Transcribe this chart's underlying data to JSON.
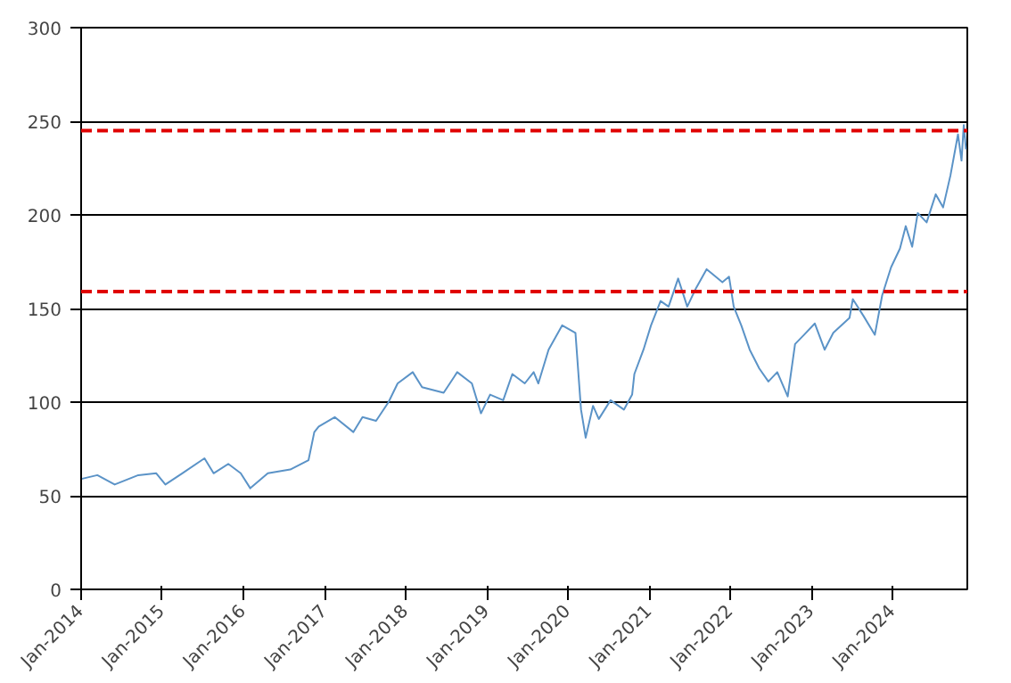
{
  "chart_data": {
    "type": "line",
    "x": [
      "2014-01-02",
      "2014-03-15",
      "2014-06-01",
      "2014-09-15",
      "2014-12-05",
      "2015-01-15",
      "2015-04-01",
      "2015-07-10",
      "2015-08-20",
      "2015-10-25",
      "2015-12-20",
      "2016-02-01",
      "2016-04-20",
      "2016-07-30",
      "2016-10-20",
      "2016-11-15",
      "2016-12-05",
      "2017-02-15",
      "2017-05-10",
      "2017-06-20",
      "2017-08-20",
      "2017-10-15",
      "2017-11-25",
      "2018-02-01",
      "2018-03-15",
      "2018-06-20",
      "2018-08-20",
      "2018-10-25",
      "2018-12-05",
      "2019-01-15",
      "2019-03-15",
      "2019-04-25",
      "2019-06-20",
      "2019-07-30",
      "2019-08-20",
      "2019-10-05",
      "2019-12-05",
      "2020-02-03",
      "2020-02-28",
      "2020-03-20",
      "2020-04-22",
      "2020-05-18",
      "2020-07-10",
      "2020-09-08",
      "2020-10-15",
      "2020-10-25",
      "2020-12-05",
      "2021-01-08",
      "2021-02-20",
      "2021-03-28",
      "2021-05-10",
      "2021-06-20",
      "2021-07-30",
      "2021-09-15",
      "2021-10-05",
      "2021-11-25",
      "2021-12-25",
      "2022-01-15",
      "2022-02-18",
      "2022-03-28",
      "2022-05-10",
      "2022-06-20",
      "2022-07-30",
      "2022-09-15",
      "2022-10-18",
      "2022-11-28",
      "2023-01-15",
      "2023-02-28",
      "2023-04-08",
      "2023-06-20",
      "2023-07-05",
      "2023-08-22",
      "2023-10-12",
      "2023-11-14",
      "2023-12-24",
      "2024-02-02",
      "2024-02-28",
      "2024-03-28",
      "2024-04-22",
      "2024-06-01",
      "2024-07-12",
      "2024-08-14",
      "2024-09-16",
      "2024-10-20",
      "2024-11-05",
      "2024-11-15",
      "2024-11-25"
    ],
    "series": [
      {
        "color": "#5b93c7",
        "values": [
          59,
          61,
          56,
          61,
          62,
          56,
          62,
          70,
          62,
          67,
          62,
          54,
          62,
          64,
          69,
          84,
          87,
          92,
          84,
          92,
          90,
          100,
          110,
          116,
          108,
          105,
          116,
          110,
          94,
          104,
          101,
          115,
          110,
          116,
          110,
          128,
          141,
          137,
          96,
          81,
          98,
          91,
          101,
          96,
          104,
          115,
          128,
          141,
          154,
          151,
          166,
          151,
          161,
          171,
          169,
          164,
          167,
          151,
          141,
          128,
          118,
          111,
          116,
          103,
          131,
          136,
          142,
          128,
          137,
          145,
          155,
          146,
          136,
          157,
          172,
          182,
          194,
          183,
          201,
          196,
          211,
          204,
          221,
          243,
          229,
          248,
          235
        ]
      }
    ],
    "xlim": [
      "2014-01-01",
      "2024-12-01"
    ],
    "xticks": [
      {
        "value": "2014-01-01",
        "label": "Jan-2014"
      },
      {
        "value": "2015-01-01",
        "label": "Jan-2015"
      },
      {
        "value": "2016-01-01",
        "label": "Jan-2016"
      },
      {
        "value": "2017-01-01",
        "label": "Jan-2017"
      },
      {
        "value": "2018-01-01",
        "label": "Jan-2018"
      },
      {
        "value": "2019-01-01",
        "label": "Jan-2019"
      },
      {
        "value": "2020-01-01",
        "label": "Jan-2020"
      },
      {
        "value": "2021-01-01",
        "label": "Jan-2021"
      },
      {
        "value": "2022-01-01",
        "label": "Jan-2022"
      },
      {
        "value": "2023-01-01",
        "label": "Jan-2023"
      },
      {
        "value": "2024-01-01",
        "label": "Jan-2024"
      }
    ],
    "ylim": [
      0,
      300
    ],
    "yticks": [
      0,
      50,
      100,
      150,
      200,
      250,
      300
    ],
    "grid": "y",
    "marker": "none",
    "line_style": "solid",
    "ref_lines": [
      {
        "axis": "y",
        "value": 245,
        "label": null,
        "color": "#e00000",
        "line_style": "dashed"
      },
      {
        "axis": "y",
        "value": 159,
        "label": null,
        "color": "#e00000",
        "line_style": "dashed"
      }
    ]
  }
}
